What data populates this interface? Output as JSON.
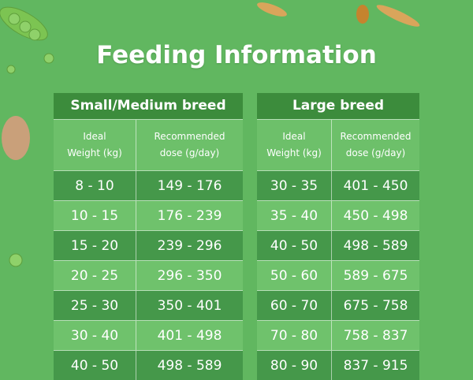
{
  "header": {
    "title": "Feeding Information"
  },
  "tables": [
    {
      "title": "Small/Medium breed",
      "columns": [
        [
          "Ideal",
          "Weight (kg)"
        ],
        [
          "Recommended",
          "dose (g/day)"
        ]
      ],
      "rows": [
        [
          "8 - 10",
          "149 - 176"
        ],
        [
          "10 - 15",
          "176 - 239"
        ],
        [
          "15 - 20",
          "239 - 296"
        ],
        [
          "20 - 25",
          "296 - 350"
        ],
        [
          "25 - 30",
          "350 - 401"
        ],
        [
          "30 - 40",
          "401 - 498"
        ],
        [
          "40 - 50",
          "498 - 589"
        ]
      ]
    },
    {
      "title": "Large breed",
      "columns": [
        [
          "Ideal",
          "Weight (kg)"
        ],
        [
          "Recommended",
          "dose (g/day)"
        ]
      ],
      "rows": [
        [
          "30 - 35",
          "401 - 450"
        ],
        [
          "35 - 40",
          "450 - 498"
        ],
        [
          "40 - 50",
          "498 - 589"
        ],
        [
          "50 - 60",
          "589 - 675"
        ],
        [
          "60 - 70",
          "675 - 758"
        ],
        [
          "70 - 80",
          "758 - 837"
        ],
        [
          "80 - 90",
          "837 - 915"
        ]
      ]
    }
  ]
}
